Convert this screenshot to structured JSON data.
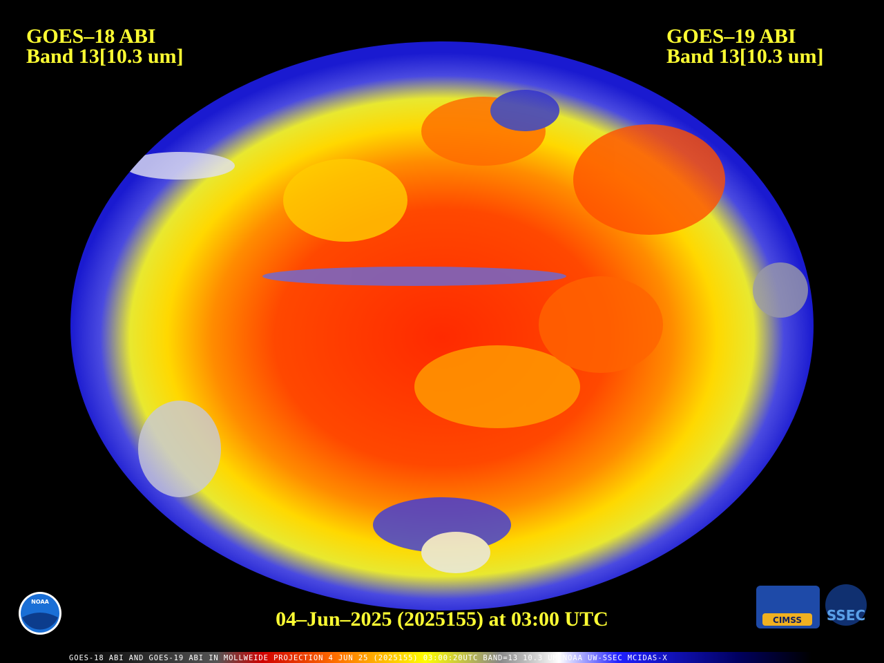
{
  "header": {
    "left": {
      "line1": "GOES–18 ABI",
      "line2": "Band 13[10.3 um]"
    },
    "right": {
      "line1": "GOES–19 ABI",
      "line2": "Band 13[10.3 um]"
    }
  },
  "timestamp": "04–Jun–2025 (2025155) at 03:00 UTC",
  "logos": {
    "noaa": "NOAA",
    "cimss": "CIMSS",
    "ssec": "SSEC"
  },
  "footer": "GOES-18 ABI AND GOES-19 ABI IN MOLLWEIDE PROJECTION 4 JUN 25 (2025155) 03:00:20UTC BAND=13 10.3 UM NOAA UW-SSEC MCIDAS-X"
}
